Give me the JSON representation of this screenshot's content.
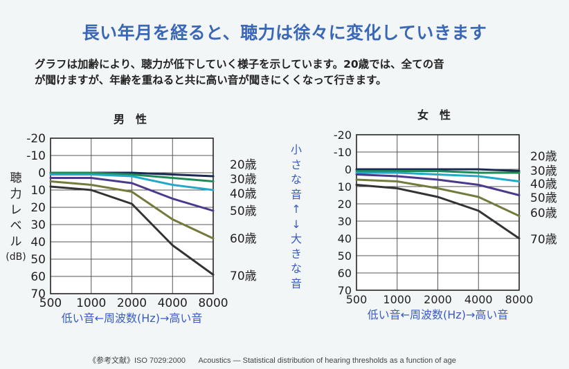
{
  "title": "長い年月を経ると、聴力は徐々に変化していきます",
  "intro": {
    "line1": "グラフは加齢により、聴力が低下していく様子を示しています。20歳では、全ての音",
    "line2": "が聞けますが、年齢を重ねると共に高い音が聞きにくくなって行きます。"
  },
  "side_note": [
    "小",
    "さ",
    "な",
    "音",
    "↑",
    "↓",
    "大",
    "き",
    "な",
    "音"
  ],
  "reference": {
    "source": "《参考文献》ISO 7029:2000",
    "text": "Acoustics — Statistical distribution of hearing thresholds as a function of age"
  },
  "colors": {
    "20歳": "#1a2a55",
    "30歳": "#1e8a55",
    "40歳": "#23a8c8",
    "50歳": "#4b3a8c",
    "60歳": "#737a3c",
    "title": "#3a67b6",
    "axis_text": "#3a5bc7"
  },
  "chart_data": [
    {
      "type": "line",
      "title": "男　性",
      "ylabel": "聴力レベル (dB)",
      "xlabel": "低い音←周波数(Hz)→高い音",
      "categories": [
        "500",
        "1000",
        "2000",
        "4000",
        "8000"
      ],
      "yticks": [
        "-20",
        "-10",
        "0",
        "10",
        "20",
        "30",
        "40",
        "50",
        "60",
        "70"
      ],
      "ylim": [
        -20,
        70
      ],
      "y_inverted": true,
      "grid": true,
      "age_labels": [
        "20歳",
        "30歳",
        "40歳",
        "50歳",
        "60歳",
        "70歳"
      ],
      "series": [
        {
          "name": "20歳",
          "values": [
            0,
            0,
            0,
            1,
            2
          ]
        },
        {
          "name": "30歳",
          "values": [
            0,
            0,
            1,
            3,
            5
          ]
        },
        {
          "name": "40歳",
          "values": [
            1,
            1,
            2,
            7,
            10
          ]
        },
        {
          "name": "50歳",
          "values": [
            3,
            3,
            6,
            15,
            22
          ]
        },
        {
          "name": "60歳",
          "values": [
            5,
            7,
            11,
            27,
            38
          ]
        },
        {
          "name": "70歳",
          "values": [
            8,
            10,
            18,
            42,
            59
          ]
        }
      ]
    },
    {
      "type": "line",
      "title": "女　性",
      "ylabel": "",
      "xlabel": "低い音←周波数(Hz)→高い音",
      "categories": [
        "500",
        "1000",
        "2000",
        "4000",
        "8000"
      ],
      "yticks": [
        "-20",
        "-10",
        "0",
        "10",
        "20",
        "30",
        "40",
        "50",
        "60",
        "70"
      ],
      "ylim": [
        -20,
        70
      ],
      "y_inverted": true,
      "grid": true,
      "age_labels": [
        "20歳",
        "30歳",
        "40歳",
        "50歳",
        "60歳",
        "70歳"
      ],
      "series": [
        {
          "name": "20歳",
          "values": [
            0,
            0,
            0,
            0,
            1
          ]
        },
        {
          "name": "30歳",
          "values": [
            1,
            1,
            1,
            2,
            2
          ]
        },
        {
          "name": "40歳",
          "values": [
            2,
            2,
            3,
            4,
            7
          ]
        },
        {
          "name": "50歳",
          "values": [
            3,
            4,
            6,
            9,
            15
          ]
        },
        {
          "name": "60歳",
          "values": [
            6,
            7,
            11,
            16,
            27
          ]
        },
        {
          "name": "70歳",
          "values": [
            9,
            11,
            16,
            24,
            40
          ]
        }
      ]
    }
  ]
}
